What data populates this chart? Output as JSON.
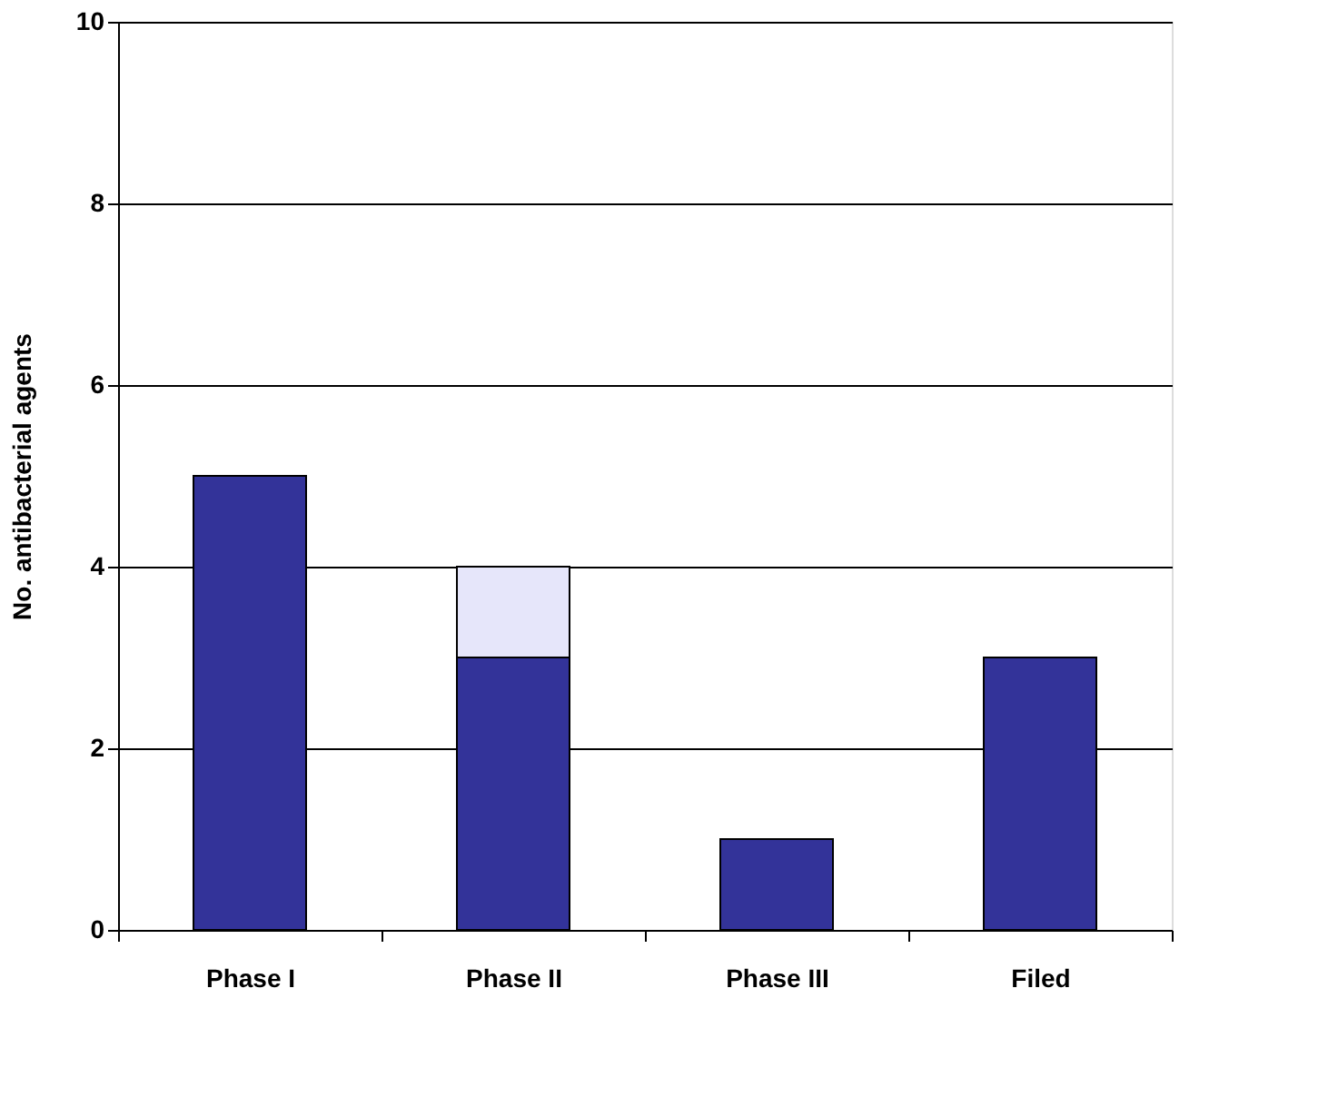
{
  "chart_data": {
    "type": "bar",
    "stacked": true,
    "ylabel": "No. antibacterial agents",
    "categories": [
      "Phase I",
      "Phase II",
      "Phase III",
      "Filed"
    ],
    "series": [
      {
        "color": "#333399",
        "values": [
          5,
          3,
          1,
          3
        ]
      },
      {
        "color": "#e6e6fa",
        "values": [
          null,
          1,
          null,
          null
        ]
      }
    ],
    "ylim": [
      0,
      10
    ],
    "yticks": [
      0,
      2,
      4,
      6,
      8,
      10
    ],
    "grid": "y"
  }
}
